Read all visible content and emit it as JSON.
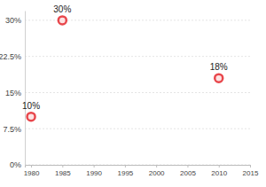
{
  "chart_data": {
    "type": "scatter",
    "x": [
      1980,
      1985,
      2010
    ],
    "values": [
      10,
      30,
      18
    ],
    "value_labels": [
      "10%",
      "30%",
      "18%"
    ],
    "data_labels": true,
    "color": "#e8474c",
    "marker": "circle",
    "xlim": [
      1979,
      2015
    ],
    "xticks": [
      1980,
      1985,
      1990,
      1995,
      2000,
      2005,
      2010,
      2015
    ],
    "ylim": [
      0,
      32
    ],
    "yticks": [
      {
        "value": 0,
        "label": "0%"
      },
      {
        "value": 7.5,
        "label": "7.5%"
      },
      {
        "value": 15,
        "label": "15%"
      },
      {
        "value": 22.5,
        "label": "22.5%"
      },
      {
        "value": 30,
        "label": "30%"
      }
    ],
    "grid": true
  }
}
